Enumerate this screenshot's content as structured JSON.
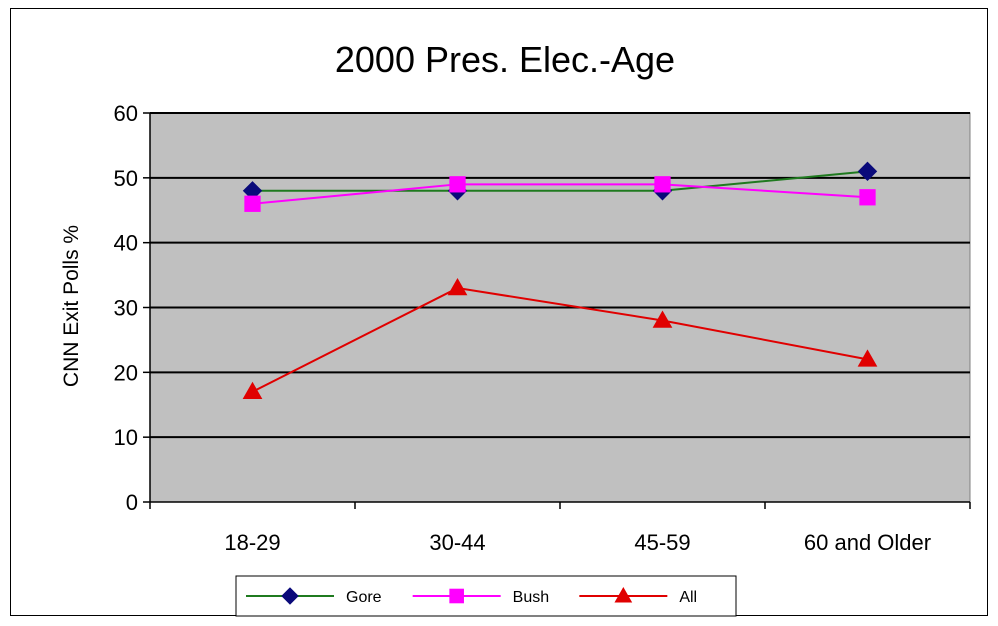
{
  "chart_data": {
    "type": "line",
    "title": "2000 Pres. Elec.-Age",
    "xlabel": "",
    "ylabel": "CNN Exit Polls %",
    "categories": [
      "18-29",
      "30-44",
      "45-59",
      "60 and Older"
    ],
    "ylim": [
      0,
      60
    ],
    "yticks": [
      0,
      10,
      20,
      30,
      40,
      50,
      60
    ],
    "grid": true,
    "legend_position": "bottom",
    "plot_background": "#c0c0c0",
    "series": [
      {
        "name": "Gore",
        "values": [
          48,
          48,
          48,
          51
        ],
        "color": "#1f7a1f",
        "marker": "diamond",
        "marker_color": "#0a0a7a"
      },
      {
        "name": "Bush",
        "values": [
          46,
          49,
          49,
          47
        ],
        "color": "#ff00ff",
        "marker": "square",
        "marker_color": "#ff00ff"
      },
      {
        "name": "All",
        "values": [
          17,
          33,
          28,
          22
        ],
        "color": "#e00000",
        "marker": "triangle",
        "marker_color": "#e00000"
      }
    ]
  }
}
